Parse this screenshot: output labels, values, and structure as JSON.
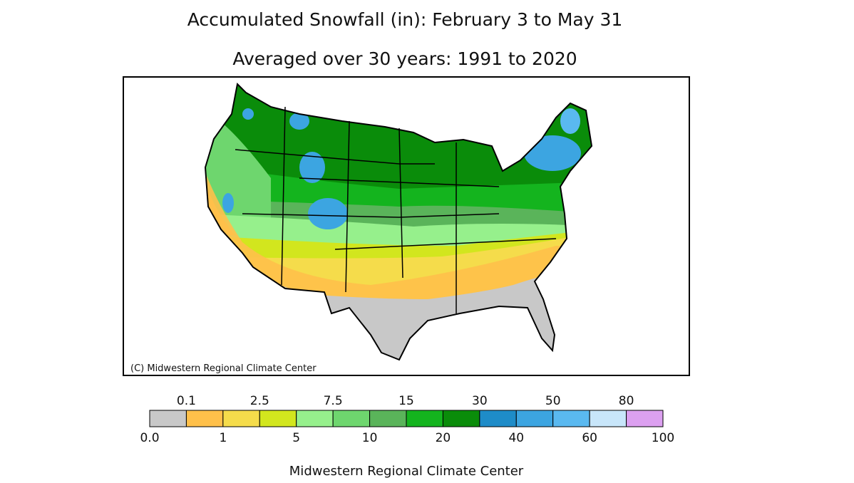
{
  "header": {
    "title": "Accumulated Snowfall (in): February 3 to May 31",
    "subtitle": "Averaged over 30 years: 1991 to 2020"
  },
  "map": {
    "credit": "(C) Midwestern Regional Climate Center"
  },
  "legend": {
    "boundaries": [
      "0.0",
      "0.1",
      "1",
      "2.5",
      "5",
      "7.5",
      "10",
      "15",
      "20",
      "30",
      "40",
      "50",
      "60",
      "80",
      "100"
    ],
    "colors": [
      "#c8c8c8",
      "#ffc04a",
      "#f5dc4b",
      "#d2e61e",
      "#96f08c",
      "#6ed66e",
      "#5ab45a",
      "#14b41e",
      "#0a8c0a",
      "#1e8cc8",
      "#3ca5e1",
      "#5ab9f0",
      "#c8e6fa",
      "#dca0f0"
    ]
  },
  "footer": {
    "text": "Midwestern Regional Climate Center"
  }
}
